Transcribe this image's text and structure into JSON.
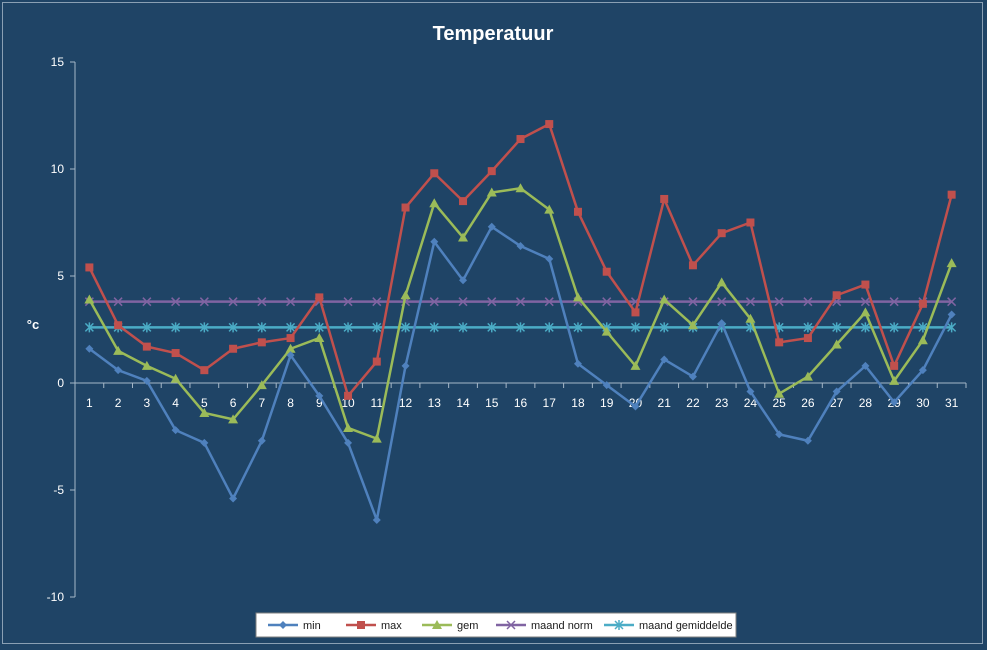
{
  "chart_data": {
    "type": "line",
    "title": "Temperatuur",
    "xlabel": "",
    "ylabel": "°c",
    "ylim": [
      -10,
      15
    ],
    "yticks": [
      15,
      10,
      5,
      0,
      -5,
      -10
    ],
    "grid": false,
    "legend_position": "bottom",
    "categories": [
      "1",
      "2",
      "3",
      "4",
      "5",
      "6",
      "7",
      "8",
      "9",
      "10",
      "11",
      "12",
      "13",
      "14",
      "15",
      "16",
      "17",
      "18",
      "19",
      "20",
      "21",
      "22",
      "23",
      "24",
      "25",
      "26",
      "27",
      "28",
      "29",
      "30",
      "31"
    ],
    "series": [
      {
        "name": "min",
        "color": "#4f81bd",
        "marker": "diamond",
        "values": [
          1.6,
          0.6,
          0.1,
          -2.2,
          -2.8,
          -5.4,
          -2.7,
          1.3,
          -0.6,
          -2.8,
          -6.4,
          0.8,
          6.6,
          4.8,
          7.3,
          6.4,
          5.8,
          0.9,
          -0.1,
          -1.1,
          1.1,
          0.3,
          2.8,
          -0.4,
          -2.4,
          -2.7,
          -0.4,
          0.8,
          -0.9,
          0.6,
          3.2
        ]
      },
      {
        "name": "max",
        "color": "#c0504d",
        "marker": "square",
        "values": [
          5.4,
          2.7,
          1.7,
          1.4,
          0.6,
          1.6,
          1.9,
          2.1,
          4.0,
          -0.6,
          1.0,
          8.2,
          9.8,
          8.5,
          9.9,
          11.4,
          12.1,
          8.0,
          5.2,
          3.3,
          8.6,
          5.5,
          7.0,
          7.5,
          1.9,
          2.1,
          4.1,
          4.6,
          0.8,
          3.7,
          8.8
        ]
      },
      {
        "name": "gem",
        "color": "#9bbb59",
        "marker": "triangle",
        "values": [
          3.9,
          1.5,
          0.8,
          0.2,
          -1.4,
          -1.7,
          -0.1,
          1.6,
          2.1,
          -2.1,
          -2.6,
          4.1,
          8.4,
          6.8,
          8.9,
          9.1,
          8.1,
          4.0,
          2.4,
          0.8,
          3.9,
          2.7,
          4.7,
          3.0,
          -0.5,
          0.3,
          1.8,
          3.3,
          0.1,
          2.0,
          5.6
        ]
      },
      {
        "name": "maand norm",
        "color": "#8064a2",
        "marker": "x",
        "values": [
          3.8,
          3.8,
          3.8,
          3.8,
          3.8,
          3.8,
          3.8,
          3.8,
          3.8,
          3.8,
          3.8,
          3.8,
          3.8,
          3.8,
          3.8,
          3.8,
          3.8,
          3.8,
          3.8,
          3.8,
          3.8,
          3.8,
          3.8,
          3.8,
          3.8,
          3.8,
          3.8,
          3.8,
          3.8,
          3.8,
          3.8
        ]
      },
      {
        "name": "maand gemiddelde",
        "color": "#4bacc6",
        "marker": "star",
        "values": [
          2.6,
          2.6,
          2.6,
          2.6,
          2.6,
          2.6,
          2.6,
          2.6,
          2.6,
          2.6,
          2.6,
          2.6,
          2.6,
          2.6,
          2.6,
          2.6,
          2.6,
          2.6,
          2.6,
          2.6,
          2.6,
          2.6,
          2.6,
          2.6,
          2.6,
          2.6,
          2.6,
          2.6,
          2.6,
          2.6,
          2.6
        ]
      }
    ],
    "colors": {
      "background": "#1f4466",
      "text": "#ffffff",
      "tick_text": "#ffffff",
      "axis": "#a6b8c8",
      "legend_bg": "#ffffff",
      "legend_text": "#1a1a1a"
    }
  }
}
